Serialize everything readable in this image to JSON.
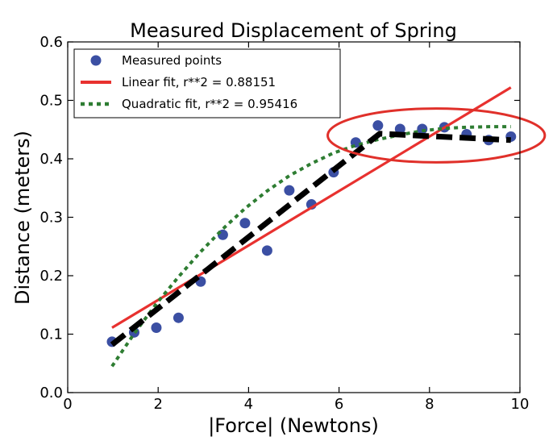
{
  "chart_data": {
    "type": "scatter",
    "title": "Measured Displacement of Spring",
    "xlabel": "|Force| (Newtons)",
    "ylabel": "Distance (meters)",
    "xlim": [
      0,
      10
    ],
    "ylim": [
      0,
      0.6
    ],
    "xticks": [
      "0",
      "2",
      "4",
      "6",
      "8",
      "10"
    ],
    "yticks": [
      "0.0",
      "0.1",
      "0.2",
      "0.3",
      "0.4",
      "0.5",
      "0.6"
    ],
    "grid": false,
    "legend_position": "top-left",
    "series": [
      {
        "name": "Measured points",
        "kind": "scatter",
        "color": "#3b4fa3",
        "x": [
          0.98,
          1.47,
          1.96,
          2.45,
          2.94,
          3.43,
          3.92,
          4.41,
          4.9,
          5.39,
          5.88,
          6.37,
          6.86,
          7.35,
          7.84,
          8.33,
          8.82,
          9.31,
          9.8
        ],
        "y": [
          0.087,
          0.103,
          0.111,
          0.128,
          0.19,
          0.27,
          0.29,
          0.243,
          0.346,
          0.322,
          0.377,
          0.428,
          0.457,
          0.451,
          0.451,
          0.454,
          0.442,
          0.432,
          0.438
        ]
      },
      {
        "name": "Linear fit, r**2 = 0.88151",
        "kind": "line",
        "color": "#e8312f",
        "style": "solid",
        "x": [
          0.98,
          9.8
        ],
        "y": [
          0.111,
          0.522
        ]
      },
      {
        "name": "Quadratic fit, r**2 = 0.95416",
        "kind": "line",
        "color": "#2e7d32",
        "style": "dotted",
        "x": [
          0.98,
          1.47,
          1.96,
          2.45,
          2.94,
          3.43,
          3.92,
          4.41,
          4.9,
          5.39,
          5.88,
          6.37,
          6.86,
          7.35,
          7.84,
          8.33,
          8.82,
          9.31,
          9.8
        ],
        "y": [
          0.045,
          0.101,
          0.152,
          0.198,
          0.241,
          0.28,
          0.315,
          0.345,
          0.371,
          0.392,
          0.41,
          0.423,
          0.433,
          0.441,
          0.448,
          0.452,
          0.454,
          0.455,
          0.455
        ]
      }
    ],
    "annotations": [
      {
        "kind": "dashed-line",
        "color": "#000000",
        "x": [
          0.98,
          6.9,
          9.8
        ],
        "y": [
          0.082,
          0.443,
          0.432
        ]
      },
      {
        "kind": "ellipse",
        "color": "#e0302a",
        "center": [
          8.15,
          0.44
        ],
        "radii": [
          2.4,
          0.046
        ]
      }
    ]
  }
}
